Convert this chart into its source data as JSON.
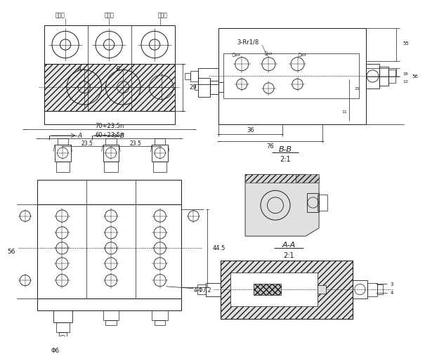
{
  "bg_color": "#ffffff",
  "line_color": "#1a1a1a",
  "dim_color": "#1a1a1a",
  "annotations": {
    "label_gongji": "供给体",
    "label_zhongjian": "中间体",
    "label_duanbu": "端部体",
    "label_A": "A",
    "label_B": "B",
    "dim_29": "29",
    "bb_label": "B-B",
    "bb_scale": "2:1",
    "aa_label": "A-A",
    "aa_scale": "2:1",
    "dim_3Rr18": "3-Rr1/8",
    "dim_oil": "油oil",
    "dim_air1": "气air",
    "dim_air2": "气air",
    "dim_36": "36",
    "dim_76": "76",
    "dim_55": "55",
    "dim_56": "56",
    "dim_18": "18",
    "dim_12": "12",
    "dim_70": "70+23.5n",
    "dim_60": "60+23.5n",
    "dim_23_5a": "23.5",
    "dim_23_5b": "23.5",
    "dim_56b": "56",
    "dim_44_5": "44.5",
    "dim_4phi72": "4-Φ7.2",
    "dim_phi6": "Φ6",
    "note_3": "3",
    "note_4": "4"
  }
}
